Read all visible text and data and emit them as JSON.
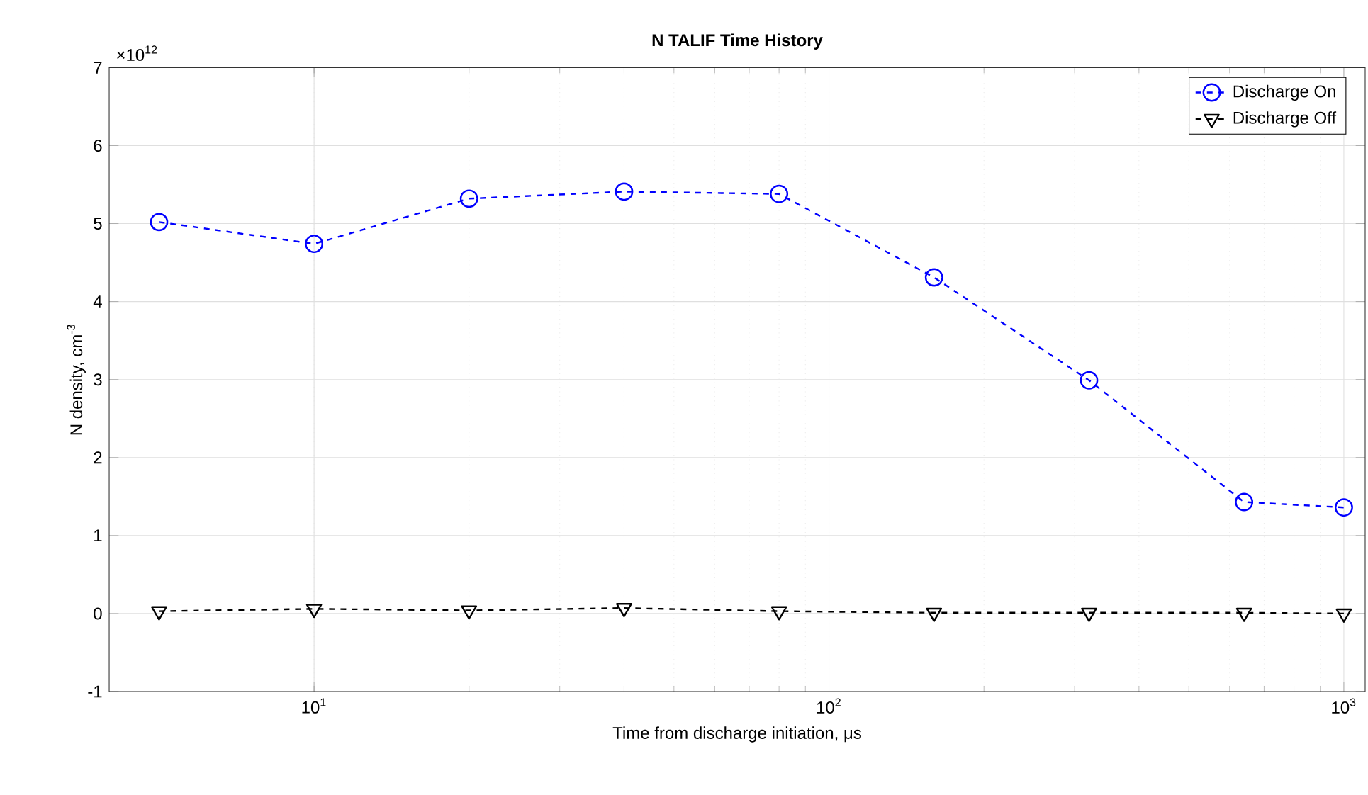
{
  "chart_data": {
    "type": "line",
    "title": "N TALIF Time History",
    "xlabel": "Time from discharge initiation, μs",
    "ylabel": "N density, cm$^{-3}$",
    "annotations": [
      "×10$^{12}$"
    ],
    "x": [
      5,
      10,
      20,
      40,
      80,
      160,
      320,
      640,
      1000
    ],
    "series": [
      {
        "name": "Discharge On",
        "color": "#0000ff",
        "marker": "circle",
        "line_style": "dashed",
        "values": [
          5.02,
          4.74,
          5.32,
          5.41,
          5.38,
          4.31,
          2.99,
          1.43,
          1.36
        ]
      },
      {
        "name": "Discharge Off",
        "color": "#000000",
        "marker": "triangle",
        "line_style": "dashed",
        "values": [
          0.03,
          0.06,
          0.04,
          0.07,
          0.03,
          0.01,
          0.01,
          0.01,
          0.0
        ]
      }
    ],
    "log": "x",
    "xlim": [
      4,
      1100
    ],
    "xticks": [
      {
        "value": 10,
        "label": "10$^{1}$"
      },
      {
        "value": 100,
        "label": "10$^{2}$"
      },
      {
        "value": 1000,
        "label": "10$^{3}$"
      }
    ],
    "ylim": [
      -1,
      7
    ],
    "yticks": [
      -1,
      0,
      1,
      2,
      3,
      4,
      5,
      6,
      7
    ],
    "grid": true,
    "legend": "top right"
  }
}
